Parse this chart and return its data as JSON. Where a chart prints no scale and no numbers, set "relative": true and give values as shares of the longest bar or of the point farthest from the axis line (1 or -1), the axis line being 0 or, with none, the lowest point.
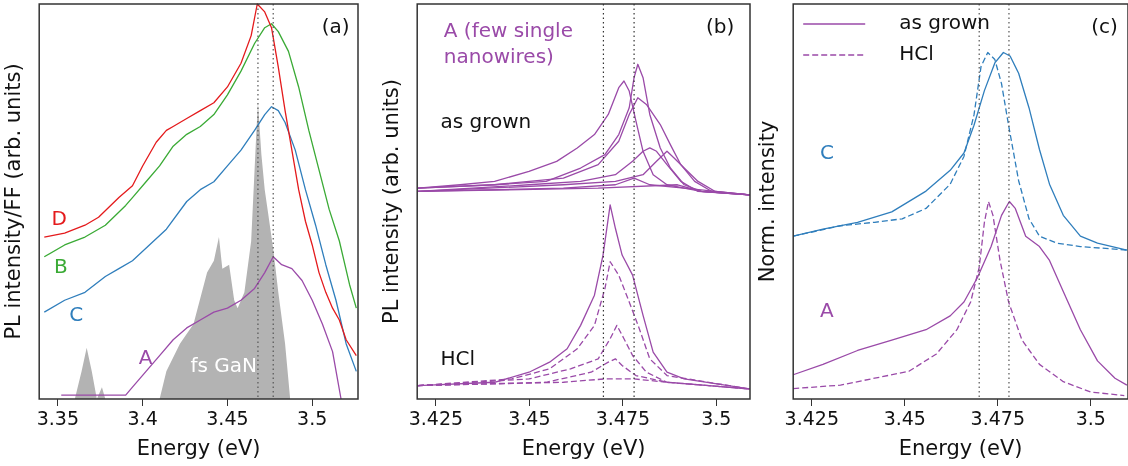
{
  "chart_data": [
    {
      "type": "line",
      "relative": true,
      "xlabel": "Energy (eV)",
      "ylabel": "PL intensity/FF (arb. units)",
      "xlim": [
        3.339,
        3.527
      ],
      "xticks": [
        3.35,
        3.4,
        3.45,
        3.5
      ],
      "marker": "none",
      "annotations": [
        "(a)"
      ],
      "ref_lines": [
        {
          "axis": "x",
          "value": 3.468,
          "color": "#555555",
          "line_style": "dotted"
        },
        {
          "axis": "x",
          "value": 3.477,
          "color": "#555555",
          "line_style": "dotted"
        }
      ],
      "series": [
        {
          "name": "D",
          "color": "#e41a1c",
          "x": [
            3.342,
            3.354,
            3.366,
            3.374,
            3.386,
            3.394,
            3.4,
            3.408,
            3.414,
            3.418,
            3.426,
            3.434,
            3.442,
            3.45,
            3.458,
            3.464,
            3.4676,
            3.472,
            3.476,
            3.48,
            3.484,
            3.488,
            3.492,
            3.496,
            3.5,
            3.504,
            3.508,
            3.512,
            3.516,
            3.52,
            3.526
          ],
          "values": [
            0.41,
            0.42,
            0.44,
            0.46,
            0.51,
            0.54,
            0.59,
            0.65,
            0.68,
            0.69,
            0.71,
            0.73,
            0.75,
            0.79,
            0.85,
            0.92,
            1.0,
            0.98,
            0.94,
            0.84,
            0.73,
            0.63,
            0.53,
            0.45,
            0.39,
            0.32,
            0.27,
            0.23,
            0.2,
            0.15,
            0.11
          ]
        },
        {
          "name": "B",
          "color": "#3aaa35",
          "x": [
            3.342,
            3.354,
            3.366,
            3.378,
            3.39,
            3.394,
            3.402,
            3.41,
            3.418,
            3.426,
            3.434,
            3.442,
            3.45,
            3.458,
            3.466,
            3.472,
            3.476,
            3.48,
            3.486,
            3.492,
            3.498,
            3.504,
            3.51,
            3.516,
            3.522,
            3.526
          ],
          "values": [
            0.36,
            0.39,
            0.41,
            0.44,
            0.49,
            0.51,
            0.55,
            0.59,
            0.64,
            0.67,
            0.69,
            0.72,
            0.77,
            0.83,
            0.9,
            0.94,
            0.95,
            0.93,
            0.88,
            0.79,
            0.68,
            0.58,
            0.48,
            0.4,
            0.29,
            0.23
          ]
        },
        {
          "name": "C",
          "color": "#2f7ebc",
          "x": [
            3.342,
            3.354,
            3.366,
            3.378,
            3.386,
            3.394,
            3.404,
            3.414,
            3.426,
            3.434,
            3.442,
            3.45,
            3.458,
            3.466,
            3.472,
            3.476,
            3.48,
            3.484,
            3.49,
            3.496,
            3.502,
            3.508,
            3.514,
            3.52,
            3.526
          ],
          "values": [
            0.22,
            0.25,
            0.27,
            0.31,
            0.33,
            0.35,
            0.39,
            0.43,
            0.5,
            0.53,
            0.55,
            0.59,
            0.63,
            0.68,
            0.72,
            0.74,
            0.73,
            0.7,
            0.63,
            0.53,
            0.44,
            0.34,
            0.25,
            0.14,
            0.07
          ]
        },
        {
          "name": "A",
          "color": "#9a4aa8",
          "x": [
            3.352,
            3.374,
            3.39,
            3.394,
            3.402,
            3.41,
            3.418,
            3.426,
            3.434,
            3.442,
            3.45,
            3.458,
            3.466,
            3.472,
            3.477,
            3.482,
            3.488,
            3.494,
            3.5,
            3.506,
            3.512,
            3.517
          ],
          "values": [
            0.01,
            0.01,
            0.01,
            0.03,
            0.07,
            0.11,
            0.15,
            0.18,
            0.2,
            0.22,
            0.23,
            0.25,
            0.28,
            0.32,
            0.36,
            0.34,
            0.33,
            0.3,
            0.25,
            0.19,
            0.12,
            0.0
          ]
        },
        {
          "name": "fs GaN",
          "type": "area",
          "color": "#b3b3b3",
          "x": [
            3.36,
            3.364,
            3.367,
            3.37,
            3.373,
            3.376,
            3.378,
            3.41,
            3.414,
            3.422,
            3.43,
            3.438,
            3.442,
            3.445,
            3.447,
            3.451,
            3.454,
            3.456,
            3.46,
            3.464,
            3.467,
            3.468,
            3.47,
            3.472,
            3.474,
            3.477,
            3.48,
            3.484,
            3.487
          ],
          "values": [
            0,
            0.07,
            0.13,
            0.07,
            0,
            0.03,
            0,
            0,
            0.07,
            0.14,
            0.19,
            0.32,
            0.35,
            0.41,
            0.33,
            0.34,
            0.25,
            0.23,
            0.27,
            0.4,
            0.67,
            0.75,
            0.62,
            0.53,
            0.47,
            0.38,
            0.27,
            0.14,
            0
          ]
        }
      ]
    },
    {
      "type": "line",
      "relative": true,
      "xlabel": "Energy (eV)",
      "ylabel": "PL intensity (arb. units)",
      "xlim": [
        3.42,
        3.509
      ],
      "xticks": [
        3.425,
        3.45,
        3.475,
        3.5
      ],
      "marker": "none",
      "annotations": [
        "(b)",
        "A (few single nanowires)",
        "as grown",
        "HCl"
      ],
      "ref_lines": [
        {
          "axis": "x",
          "value": 3.4698,
          "color": "#333333",
          "line_style": "dotted"
        },
        {
          "axis": "x",
          "value": 3.478,
          "color": "#333333",
          "line_style": "dotted"
        }
      ],
      "series": [
        {
          "color": "#9a4aa8",
          "x": [
            3.4202,
            3.4315,
            3.4407,
            3.4499,
            3.4573,
            3.4628,
            3.4674,
            3.4711,
            3.4739,
            3.4753,
            3.4767,
            3.4785,
            3.4804,
            3.4831,
            3.4868,
            3.4914,
            3.496,
            3.5089
          ],
          "values": [
            0.63,
            0.64,
            0.65,
            0.68,
            0.71,
            0.75,
            0.79,
            0.85,
            0.93,
            0.95,
            0.92,
            0.83,
            0.74,
            0.67,
            0.64,
            0.63,
            0.62,
            0.61
          ]
        },
        {
          "color": "#9a4aa8",
          "x": [
            3.4202,
            3.4407,
            3.4545,
            3.4637,
            3.4702,
            3.4739,
            3.4767,
            3.478,
            3.479,
            3.4804,
            3.4822,
            3.485,
            3.4877,
            3.4914,
            3.496,
            3.5089
          ],
          "values": [
            0.63,
            0.64,
            0.65,
            0.69,
            0.73,
            0.79,
            0.87,
            0.96,
            1.0,
            0.96,
            0.85,
            0.75,
            0.69,
            0.64,
            0.62,
            0.61
          ]
        },
        {
          "color": "#9a4aa8",
          "x": [
            3.4202,
            3.4407,
            3.4591,
            3.4684,
            3.4739,
            3.4767,
            3.479,
            3.4813,
            3.485,
            3.4877,
            3.4905,
            3.4942,
            3.4988,
            3.5089
          ],
          "values": [
            0.63,
            0.64,
            0.66,
            0.7,
            0.77,
            0.85,
            0.9,
            0.88,
            0.82,
            0.76,
            0.7,
            0.65,
            0.62,
            0.61
          ]
        },
        {
          "color": "#9a4aa8",
          "x": [
            3.4202,
            3.4499,
            3.4637,
            3.473,
            3.4776,
            3.4804,
            3.4822,
            3.484,
            3.4868,
            3.4905,
            3.4951,
            3.5089
          ],
          "values": [
            0.62,
            0.64,
            0.65,
            0.67,
            0.71,
            0.74,
            0.75,
            0.74,
            0.7,
            0.65,
            0.62,
            0.61
          ]
        },
        {
          "color": "#9a4aa8",
          "x": [
            3.4202,
            3.4591,
            3.473,
            3.4804,
            3.484,
            3.4868,
            3.4887,
            3.4914,
            3.4951,
            3.4997,
            3.5089
          ],
          "values": [
            0.62,
            0.64,
            0.65,
            0.67,
            0.71,
            0.74,
            0.72,
            0.69,
            0.65,
            0.62,
            0.61
          ]
        },
        {
          "color": "#9a4aa8",
          "x": [
            3.4202,
            3.4591,
            3.473,
            3.478,
            3.4822,
            3.4914,
            3.5089
          ],
          "values": [
            0.62,
            0.63,
            0.64,
            0.66,
            0.64,
            0.63,
            0.61
          ]
        },
        {
          "color": "#9a4aa8",
          "x": [
            3.4202,
            3.4684,
            3.4896,
            3.496,
            3.5089
          ],
          "values": [
            0.62,
            0.63,
            0.64,
            0.62,
            0.61
          ]
        },
        {
          "color": "#9a4aa8",
          "x": [
            3.4202,
            3.4407,
            3.4499,
            3.4554,
            3.4601,
            3.4637,
            3.4674,
            3.4697,
            3.4716,
            3.473,
            3.4748,
            3.4776,
            3.4804,
            3.4831,
            3.4868,
            3.4914,
            3.5089
          ],
          "values": [
            0.04,
            0.05,
            0.08,
            0.11,
            0.15,
            0.22,
            0.31,
            0.43,
            0.58,
            0.51,
            0.43,
            0.37,
            0.25,
            0.14,
            0.08,
            0.06,
            0.03
          ]
        },
        {
          "color": "#9a4aa8",
          "line_style": "dashed",
          "x": [
            3.4202,
            3.4453,
            3.4554,
            3.4628,
            3.4674,
            3.4702,
            3.4716,
            3.4739,
            3.4767,
            3.4794,
            3.4822,
            3.4868,
            3.5089
          ],
          "values": [
            0.04,
            0.06,
            0.09,
            0.15,
            0.22,
            0.33,
            0.41,
            0.37,
            0.29,
            0.21,
            0.12,
            0.07,
            0.03
          ]
        },
        {
          "color": "#9a4aa8",
          "line_style": "dashed",
          "x": [
            3.4202,
            3.4499,
            3.461,
            3.4684,
            3.4716,
            3.4734,
            3.4753,
            3.4776,
            3.4813,
            3.4868,
            3.5089
          ],
          "values": [
            0.04,
            0.06,
            0.09,
            0.12,
            0.18,
            0.22,
            0.18,
            0.13,
            0.08,
            0.05,
            0.03
          ]
        },
        {
          "color": "#9a4aa8",
          "line_style": "dashed",
          "x": [
            3.4202,
            3.4545,
            3.4665,
            3.4711,
            3.473,
            3.4748,
            3.4785,
            3.4868,
            3.5089
          ],
          "values": [
            0.04,
            0.05,
            0.08,
            0.11,
            0.12,
            0.1,
            0.07,
            0.05,
            0.03
          ]
        },
        {
          "color": "#9a4aa8",
          "line_style": "dashed",
          "x": [
            3.4202,
            3.4591,
            3.4702,
            3.478,
            3.4868,
            3.5089
          ],
          "values": [
            0.04,
            0.05,
            0.06,
            0.06,
            0.05,
            0.03
          ]
        }
      ]
    },
    {
      "type": "line",
      "relative": true,
      "xlabel": "Energy (eV)",
      "ylabel": "Norm. intensity",
      "xlim": [
        3.42,
        3.51
      ],
      "xticks": [
        3.425,
        3.45,
        3.475,
        3.5
      ],
      "marker": "none",
      "legend": "top left",
      "annotations": [
        "(c)",
        "C",
        "A"
      ],
      "ref_lines": [
        {
          "axis": "x",
          "value": 3.47,
          "color": "#555555",
          "line_style": "dotted"
        },
        {
          "axis": "x",
          "value": 3.478,
          "color": "#555555",
          "line_style": "dotted"
        }
      ],
      "series": [
        {
          "color": "#2f7ebc",
          "x": [
            3.42,
            3.428,
            3.4373,
            3.4465,
            3.4557,
            3.4622,
            3.4659,
            3.4686,
            3.4714,
            3.4742,
            3.4765,
            3.4783,
            3.4806,
            3.4834,
            3.4862,
            3.4889,
            3.4926,
            3.4972,
            3.5018,
            3.5097
          ],
          "values": [
            0.47,
            0.49,
            0.51,
            0.54,
            0.6,
            0.66,
            0.71,
            0.79,
            0.89,
            0.97,
            1.0,
            0.99,
            0.94,
            0.84,
            0.72,
            0.62,
            0.53,
            0.47,
            0.45,
            0.43
          ]
        },
        {
          "color": "#2f7ebc",
          "line_style": "dashed",
          "x": [
            3.42,
            3.4327,
            3.4419,
            3.4493,
            3.4557,
            3.4622,
            3.4659,
            3.4686,
            3.4705,
            3.4723,
            3.4742,
            3.476,
            3.4779,
            3.4806,
            3.4834,
            3.4862,
            3.4908,
            3.4972,
            3.5097
          ],
          "values": [
            0.47,
            0.5,
            0.51,
            0.52,
            0.55,
            0.62,
            0.7,
            0.82,
            0.96,
            1.0,
            0.98,
            0.91,
            0.79,
            0.63,
            0.52,
            0.47,
            0.45,
            0.44,
            0.43
          ]
        },
        {
          "name": "as grown",
          "color": "#9a4aa8",
          "x": [
            3.42,
            3.428,
            3.4373,
            3.4465,
            3.4557,
            3.4622,
            3.4659,
            3.4695,
            3.4732,
            3.476,
            3.4781,
            3.4797,
            3.4825,
            3.4862,
            3.4889,
            3.4926,
            3.4972,
            3.5018,
            3.5065,
            3.5097
          ],
          "values": [
            0.07,
            0.1,
            0.14,
            0.17,
            0.2,
            0.24,
            0.28,
            0.35,
            0.44,
            0.53,
            0.57,
            0.55,
            0.47,
            0.44,
            0.4,
            0.31,
            0.2,
            0.11,
            0.06,
            0.04
          ]
        },
        {
          "name": "HCl",
          "color": "#9a4aa8",
          "line_style": "dashed",
          "x": [
            3.42,
            3.4327,
            3.4419,
            3.4511,
            3.4585,
            3.464,
            3.4677,
            3.47,
            3.4714,
            3.4725,
            3.4737,
            3.4756,
            3.4779,
            3.4815,
            3.4862,
            3.4926,
            3.5,
            3.509
          ],
          "values": [
            0.03,
            0.04,
            0.06,
            0.08,
            0.13,
            0.2,
            0.28,
            0.38,
            0.51,
            0.57,
            0.53,
            0.4,
            0.28,
            0.17,
            0.1,
            0.05,
            0.02,
            0.01
          ]
        }
      ]
    }
  ]
}
